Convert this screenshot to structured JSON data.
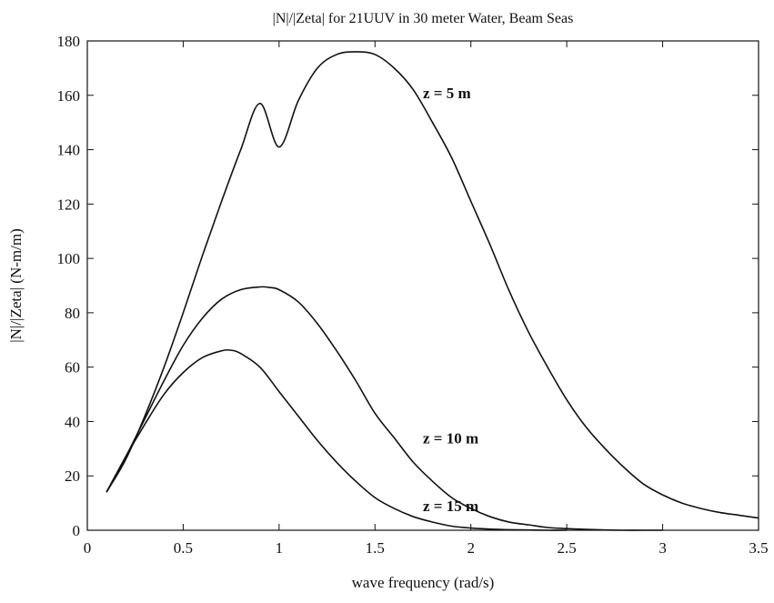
{
  "chart_data": {
    "type": "line",
    "title": "|N|/|Zeta| for 21UUV in 30 meter Water, Beam Seas",
    "xlabel": "wave frequency (rad/s)",
    "ylabel": "|N|/|Zeta| (N-m/m)",
    "xlim": [
      0,
      3.5
    ],
    "ylim": [
      0,
      180
    ],
    "xticks": [
      0,
      0.5,
      1,
      1.5,
      2,
      2.5,
      3,
      3.5
    ],
    "xtick_labels": [
      "0",
      "0.5",
      "1",
      "1.5",
      "2",
      "2.5",
      "3",
      "3.5"
    ],
    "yticks": [
      0,
      20,
      40,
      60,
      80,
      100,
      120,
      140,
      160,
      180
    ],
    "ytick_labels": [
      "0",
      "20",
      "40",
      "60",
      "80",
      "100",
      "120",
      "140",
      "160",
      "180"
    ],
    "grid": false,
    "legend": "none",
    "line_color": "#111111",
    "series": [
      {
        "x": [
          0.1,
          0.2,
          0.3,
          0.4,
          0.5,
          0.6,
          0.7,
          0.8,
          0.9,
          1.0,
          1.1,
          1.2,
          1.3,
          1.4,
          1.5,
          1.6,
          1.7,
          1.8,
          1.9,
          2.0,
          2.1,
          2.2,
          2.3,
          2.4,
          2.5,
          2.6,
          2.7,
          2.8,
          2.9,
          3.0,
          3.1,
          3.2,
          3.3,
          3.4,
          3.5
        ],
        "y": [
          14,
          26,
          42,
          60,
          80,
          101,
          121,
          140,
          157,
          141,
          158,
          170,
          175,
          176,
          175,
          170,
          162,
          150,
          137,
          121,
          105,
          88,
          73,
          60,
          48,
          38,
          30,
          23,
          17,
          13,
          10,
          8,
          6.5,
          5.5,
          4.5
        ]
      },
      {
        "x": [
          0.1,
          0.2,
          0.3,
          0.4,
          0.5,
          0.6,
          0.7,
          0.8,
          0.9,
          0.95,
          1.0,
          1.1,
          1.2,
          1.3,
          1.4,
          1.5,
          1.6,
          1.7,
          1.8,
          1.9,
          2.0,
          2.1,
          2.2,
          2.3,
          2.4,
          2.5,
          2.6,
          2.7,
          2.8,
          2.9,
          3.0
        ],
        "y": [
          14,
          27,
          41,
          55,
          68,
          78,
          85,
          88.5,
          89.5,
          89.3,
          88.5,
          84,
          76,
          66,
          55,
          43,
          34,
          25,
          18,
          12,
          8,
          5,
          3,
          2,
          1,
          0.6,
          0.3,
          0.1,
          0,
          0,
          0
        ]
      },
      {
        "x": [
          0.1,
          0.2,
          0.3,
          0.4,
          0.5,
          0.6,
          0.7,
          0.75,
          0.8,
          0.9,
          1.0,
          1.1,
          1.2,
          1.3,
          1.4,
          1.5,
          1.6,
          1.7,
          1.8,
          1.9,
          2.0,
          2.1,
          2.2,
          2.3,
          2.4,
          2.5
        ],
        "y": [
          14,
          27,
          39,
          50,
          58,
          63.5,
          66,
          66.2,
          65,
          60,
          51,
          42,
          33,
          25,
          18,
          12,
          8,
          5,
          3,
          1.5,
          0.8,
          0.4,
          0.2,
          0.1,
          0,
          0
        ]
      }
    ],
    "annotations": [
      {
        "text": "z = 5 m",
        "x": 1.75,
        "y": 161
      },
      {
        "text": "z = 10 m",
        "x": 1.75,
        "y": 34
      },
      {
        "text": "z = 15 m",
        "x": 1.75,
        "y": 9
      }
    ]
  }
}
